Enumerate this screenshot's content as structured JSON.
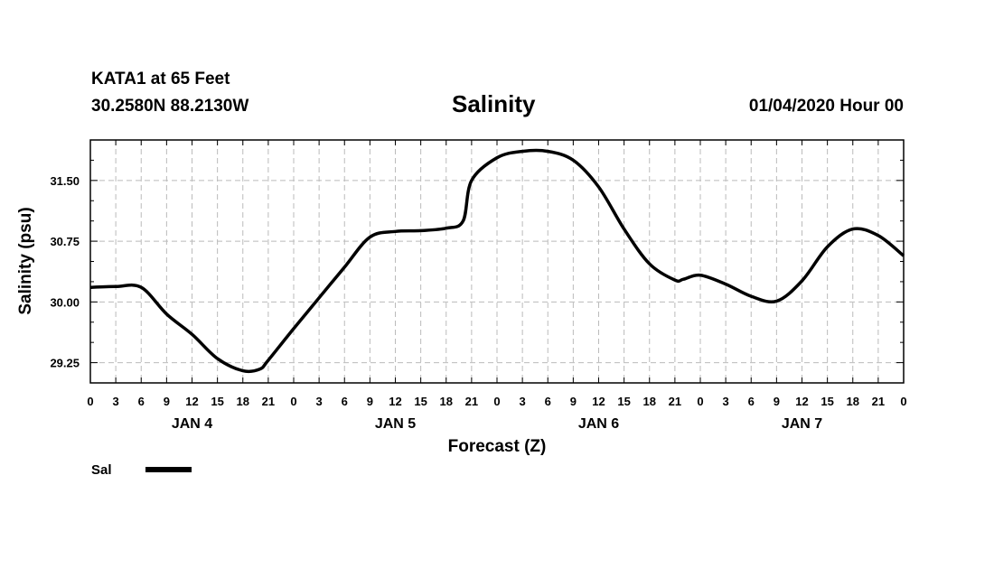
{
  "header": {
    "station": "KATA1 at 65 Feet",
    "coords": "30.2580N 88.2130W",
    "title": "Salinity",
    "timestamp": "01/04/2020 Hour 00"
  },
  "chart_data": {
    "type": "line",
    "title": "Salinity",
    "xlabel": "Forecast (Z)",
    "ylabel": "Salinity (psu)",
    "x_unit": "hours from 01/04/2020 00Z",
    "xlim": [
      0,
      96
    ],
    "ylim": [
      29.0,
      32.0
    ],
    "yticks": [
      29.25,
      30.0,
      30.75,
      31.5
    ],
    "ytick_labels": [
      "29.25",
      "30.00",
      "30.75",
      "31.50"
    ],
    "xtick_step": 3,
    "xtick_labels": [
      "0",
      "3",
      "6",
      "9",
      "12",
      "15",
      "18",
      "21",
      "0",
      "3",
      "6",
      "9",
      "12",
      "15",
      "18",
      "21",
      "0",
      "3",
      "6",
      "9",
      "12",
      "15",
      "18",
      "21",
      "0",
      "3",
      "6",
      "9",
      "12",
      "15",
      "18",
      "21",
      "0"
    ],
    "day_labels": [
      {
        "hour": 12,
        "label": "JAN 4"
      },
      {
        "hour": 36,
        "label": "JAN 5"
      },
      {
        "hour": 60,
        "label": "JAN 6"
      },
      {
        "hour": 84,
        "label": "JAN 7"
      }
    ],
    "grid": true,
    "series": [
      {
        "name": "Sal",
        "color": "#000000",
        "x": [
          0,
          3,
          6,
          9,
          12,
          15,
          18,
          20,
          21,
          24,
          27,
          30,
          33,
          36,
          39,
          42,
          44,
          45,
          48,
          51,
          54,
          57,
          60,
          63,
          66,
          69,
          70,
          72,
          75,
          78,
          81,
          84,
          87,
          90,
          93,
          96
        ],
        "y": [
          30.18,
          30.19,
          30.18,
          29.85,
          29.6,
          29.3,
          29.15,
          29.17,
          29.28,
          29.67,
          30.05,
          30.43,
          30.8,
          30.87,
          30.88,
          30.91,
          31.0,
          31.5,
          31.78,
          31.86,
          31.86,
          31.75,
          31.42,
          30.9,
          30.47,
          30.27,
          30.28,
          30.33,
          30.22,
          30.07,
          30.01,
          30.26,
          30.68,
          30.9,
          30.82,
          30.57
        ]
      }
    ],
    "legend": {
      "position": "bottom-left",
      "label": "Sal"
    }
  }
}
